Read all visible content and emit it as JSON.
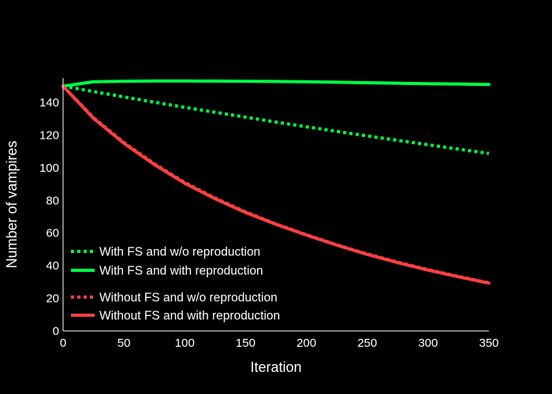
{
  "chart_data": {
    "type": "line",
    "title": "",
    "xlabel": "Iteration",
    "ylabel": "Number of vampires",
    "xlim": [
      0,
      350
    ],
    "ylim": [
      0,
      155
    ],
    "x_ticks": [
      0,
      50,
      100,
      150,
      200,
      250,
      300,
      350
    ],
    "y_ticks": [
      0,
      20,
      40,
      60,
      80,
      100,
      120,
      140
    ],
    "grid": false,
    "legend_position": "bottom-left",
    "x": [
      0,
      25,
      50,
      75,
      100,
      125,
      150,
      175,
      200,
      225,
      250,
      275,
      300,
      325,
      350
    ],
    "series": [
      {
        "name": "With FS and w/o reproduction",
        "color": "#00ff44",
        "dash": "dotted",
        "values": [
          150,
          146.7,
          143.4,
          140.2,
          137.0,
          134.0,
          131.0,
          128.0,
          125.1,
          122.3,
          119.5,
          116.8,
          114.1,
          111.4,
          108.8
        ]
      },
      {
        "name": "With FS and with reproduction",
        "color": "#00ff44",
        "dash": "solid",
        "values": [
          150,
          152.7,
          153.0,
          153.2,
          153.2,
          153.1,
          153.0,
          152.9,
          152.7,
          152.4,
          152.1,
          151.8,
          151.5,
          151.3,
          151.0
        ]
      },
      {
        "name": "Without FS and w/o reproduction",
        "color": "#ff4040",
        "dash": "dotted",
        "values": [
          150,
          130.8,
          115.5,
          102.5,
          91.0,
          81.5,
          73.0,
          65.6,
          59.0,
          52.8,
          47.2,
          42.2,
          37.6,
          33.4,
          29.5
        ]
      },
      {
        "name": "Without FS and with reproduction",
        "color": "#ff4040",
        "dash": "solid",
        "values": [
          150,
          130.3,
          115.0,
          102.0,
          90.5,
          81.0,
          72.6,
          65.3,
          58.8,
          52.6,
          46.9,
          41.9,
          37.3,
          33.2,
          29.3
        ]
      }
    ]
  }
}
